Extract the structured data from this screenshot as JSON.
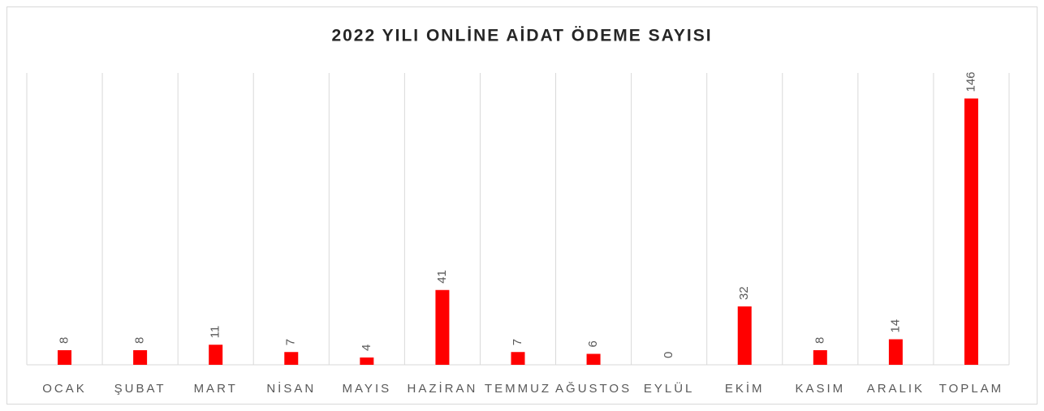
{
  "chart_data": {
    "type": "bar",
    "title": "2022 YILI ONLİNE AİDAT ÖDEME SAYISI",
    "categories": [
      "OCAK",
      "ŞUBAT",
      "MART",
      "NİSAN",
      "MAYIS",
      "HAZİRAN",
      "TEMMUZ",
      "AĞUSTOS",
      "EYLÜL",
      "EKİM",
      "KASIM",
      "ARALIK",
      "TOPLAM"
    ],
    "values": [
      8,
      8,
      11,
      7,
      4,
      41,
      7,
      6,
      0,
      32,
      8,
      14,
      146
    ],
    "color": "#ff0000",
    "ylim": [
      0,
      160
    ]
  }
}
